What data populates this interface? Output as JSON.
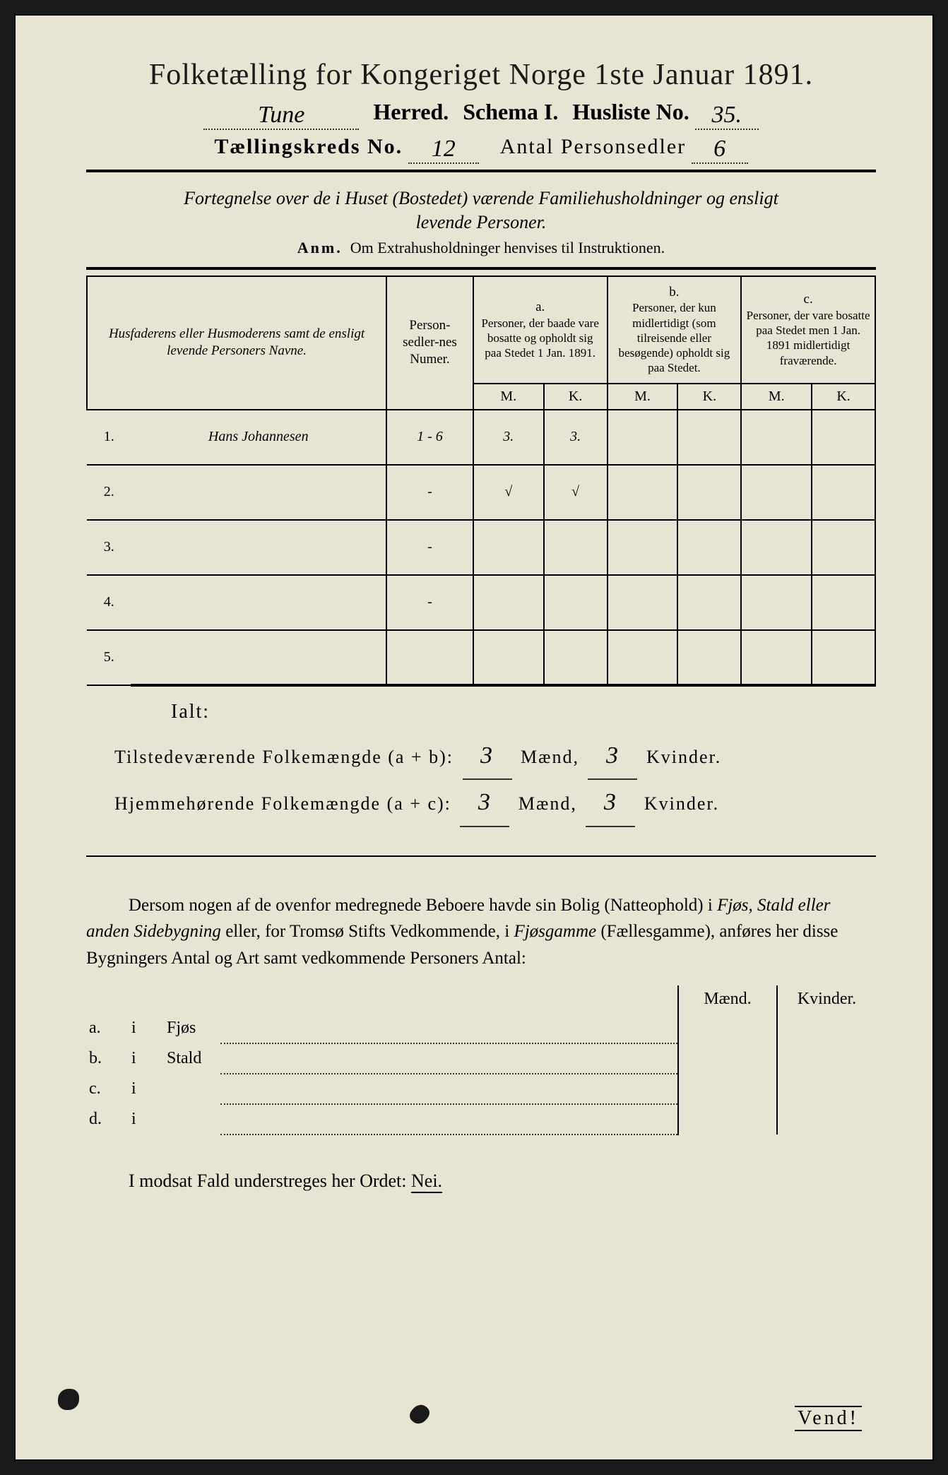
{
  "header": {
    "title": "Folketælling for Kongeriget Norge 1ste Januar 1891.",
    "herred_value": "Tune",
    "herred_label": "Herred.",
    "schema_label": "Schema I.",
    "husliste_label": "Husliste No.",
    "husliste_value": "35.",
    "kreds_label": "Tællingskreds No.",
    "kreds_value": "12",
    "antal_label": "Antal Personsedler",
    "antal_value": "6"
  },
  "subtitle": {
    "line1": "Fortegnelse over de i Huset (Bostedet) værende Familiehusholdninger og ensligt",
    "line2": "levende Personer."
  },
  "anm": {
    "prefix": "Anm.",
    "text": "Om Extrahusholdninger henvises til Instruktionen."
  },
  "table": {
    "columns": {
      "name": "Husfaderens eller Husmoderens samt de ensligt levende Personers Navne.",
      "num": "Person-sedler-nes Numer.",
      "a_label": "a.",
      "a": "Personer, der baade vare bosatte og opholdt sig paa Stedet 1 Jan. 1891.",
      "b_label": "b.",
      "b": "Personer, der kun midlertidigt (som tilreisende eller besøgende) opholdt sig paa Stedet.",
      "c_label": "c.",
      "c": "Personer, der vare bosatte paa Stedet men 1 Jan. 1891 midlertidigt fraværende.",
      "m": "M.",
      "k": "K."
    },
    "rows": [
      {
        "n": "1.",
        "name": "Hans Johannesen",
        "num": "1 - 6",
        "a_m": "3.",
        "a_k": "3.",
        "b_m": "",
        "b_k": "",
        "c_m": "",
        "c_k": ""
      },
      {
        "n": "2.",
        "name": "",
        "num": "-",
        "a_m": "√",
        "a_k": "√",
        "b_m": "",
        "b_k": "",
        "c_m": "",
        "c_k": ""
      },
      {
        "n": "3.",
        "name": "",
        "num": "-",
        "a_m": "",
        "a_k": "",
        "b_m": "",
        "b_k": "",
        "c_m": "",
        "c_k": ""
      },
      {
        "n": "4.",
        "name": "",
        "num": "-",
        "a_m": "",
        "a_k": "",
        "b_m": "",
        "b_k": "",
        "c_m": "",
        "c_k": ""
      },
      {
        "n": "5.",
        "name": "",
        "num": "",
        "a_m": "",
        "a_k": "",
        "b_m": "",
        "b_k": "",
        "c_m": "",
        "c_k": ""
      }
    ]
  },
  "totals": {
    "ialt": "Ialt:",
    "line1_label": "Tilstedeværende Folkemængde (a + b):",
    "line1_m": "3",
    "maend": "Mænd,",
    "line1_k": "3",
    "kvinder": "Kvinder.",
    "line2_label": "Hjemmehørende Folkemængde (a + c):",
    "line2_m": "3",
    "line2_k": "3"
  },
  "para": "Dersom nogen af de ovenfor medregnede Beboere havde sin Bolig (Natteophold) i Fjøs, Stald eller anden Sidebygning eller, for Tromsø Stifts Vedkommende, i Fjøsgamme (Fællesgamme), anføres her disse Bygningers Antal og Art samt vedkommende Personers Antal:",
  "side": {
    "maend": "Mænd.",
    "kvinder": "Kvinder.",
    "rows": [
      {
        "l": "a.",
        "i": "i",
        "t": "Fjøs"
      },
      {
        "l": "b.",
        "i": "i",
        "t": "Stald"
      },
      {
        "l": "c.",
        "i": "i",
        "t": ""
      },
      {
        "l": "d.",
        "i": "i",
        "t": ""
      }
    ]
  },
  "nei": {
    "text": "I modsat Fald understreges her Ordet:",
    "word": "Nei."
  },
  "vend": "Vend!",
  "colors": {
    "paper": "#e8e4d4",
    "ink": "#1a1a1a",
    "bg": "#1a1a1a"
  }
}
